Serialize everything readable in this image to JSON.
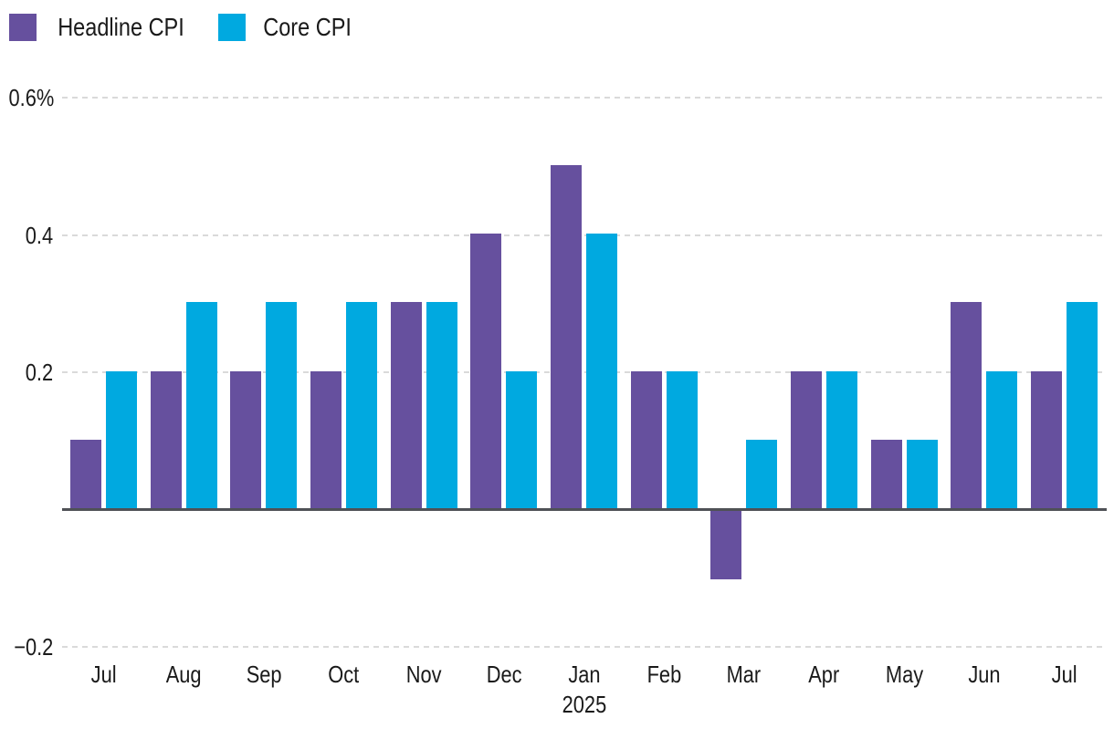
{
  "chart_data": {
    "type": "bar",
    "title": "",
    "categories": [
      "Jul",
      "Aug",
      "Sep",
      "Oct",
      "Nov",
      "Dec",
      "Jan",
      "Feb",
      "Mar",
      "Apr",
      "May",
      "Jun",
      "Jul"
    ],
    "x_axis": {
      "year_label": "2025",
      "year_label_index": 6
    },
    "series": [
      {
        "name": "Headline CPI",
        "color": "#66509e",
        "values": [
          0.1,
          0.2,
          0.2,
          0.2,
          0.3,
          0.4,
          0.5,
          0.2,
          -0.1,
          0.2,
          0.1,
          0.3,
          0.2
        ]
      },
      {
        "name": "Core CPI",
        "color": "#00a9e0",
        "values": [
          0.2,
          0.3,
          0.3,
          0.3,
          0.3,
          0.2,
          0.4,
          0.2,
          0.1,
          0.2,
          0.1,
          0.2,
          0.3
        ]
      }
    ],
    "ylabel": "",
    "xlabel": "",
    "ylim": [
      -0.2,
      0.6
    ],
    "yticks": [
      {
        "value": 0.6,
        "label": "0.6%"
      },
      {
        "value": 0.4,
        "label": "0.4"
      },
      {
        "value": 0.2,
        "label": "0.2"
      },
      {
        "value": -0.2,
        "label": "−0.2"
      }
    ],
    "grid": "horizontal-dashed",
    "legend_position": "top-left",
    "colors": {
      "background": "#ffffff",
      "axis_line": "#4f5156",
      "gridline": "#dadada",
      "text": "#1a1a1a"
    }
  }
}
